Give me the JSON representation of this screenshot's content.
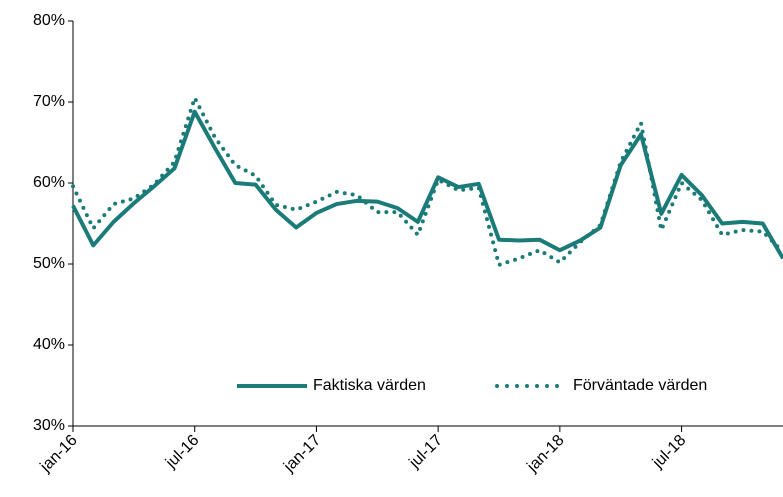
{
  "chart_data": {
    "type": "line",
    "categories": [
      "jan-16",
      null,
      null,
      null,
      null,
      null,
      "jul-16",
      null,
      null,
      null,
      null,
      null,
      "jan-17",
      null,
      null,
      null,
      null,
      null,
      "jul-17",
      null,
      null,
      null,
      null,
      null,
      "jan-18",
      null,
      null,
      null,
      null,
      null,
      "jul-18",
      null,
      null,
      null,
      null,
      null
    ],
    "series": [
      {
        "name": "Faktiska värden",
        "color": "#1b7b78",
        "style": "solid",
        "values": [
          57.2,
          52.3,
          55.2,
          57.5,
          59.6,
          61.8,
          68.8,
          64.3,
          60.0,
          59.8,
          56.7,
          54.5,
          56.3,
          57.4,
          57.8,
          57.7,
          56.9,
          55.2,
          60.7,
          59.5,
          59.9,
          53.0,
          52.9,
          53.0,
          51.7,
          52.9,
          54.5,
          62.2,
          66.0,
          56.2,
          61.0,
          58.5,
          55.0,
          55.2,
          55.0,
          50.7
        ]
      },
      {
        "name": "Förväntade värden",
        "color": "#1b7b78",
        "style": "dotted",
        "values": [
          59.6,
          54.4,
          57.4,
          58.1,
          59.8,
          62.6,
          70.5,
          65.6,
          62.2,
          60.9,
          57.3,
          56.7,
          57.7,
          58.9,
          58.5,
          56.4,
          56.4,
          53.6,
          60.4,
          59.1,
          59.4,
          49.9,
          50.7,
          51.7,
          50.2,
          52.7,
          54.8,
          62.6,
          67.4,
          54.2,
          60.0,
          57.9,
          53.6,
          54.2,
          54.0,
          51.5
        ]
      }
    ],
    "ylim": [
      30,
      80
    ],
    "yticks": [
      {
        "value": 30,
        "label": "30%"
      },
      {
        "value": 40,
        "label": "40%"
      },
      {
        "value": 50,
        "label": "50%"
      },
      {
        "value": 60,
        "label": "60%"
      },
      {
        "value": 70,
        "label": "70%"
      },
      {
        "value": 80,
        "label": "80%"
      }
    ],
    "grid": false,
    "legend": "bottom"
  }
}
